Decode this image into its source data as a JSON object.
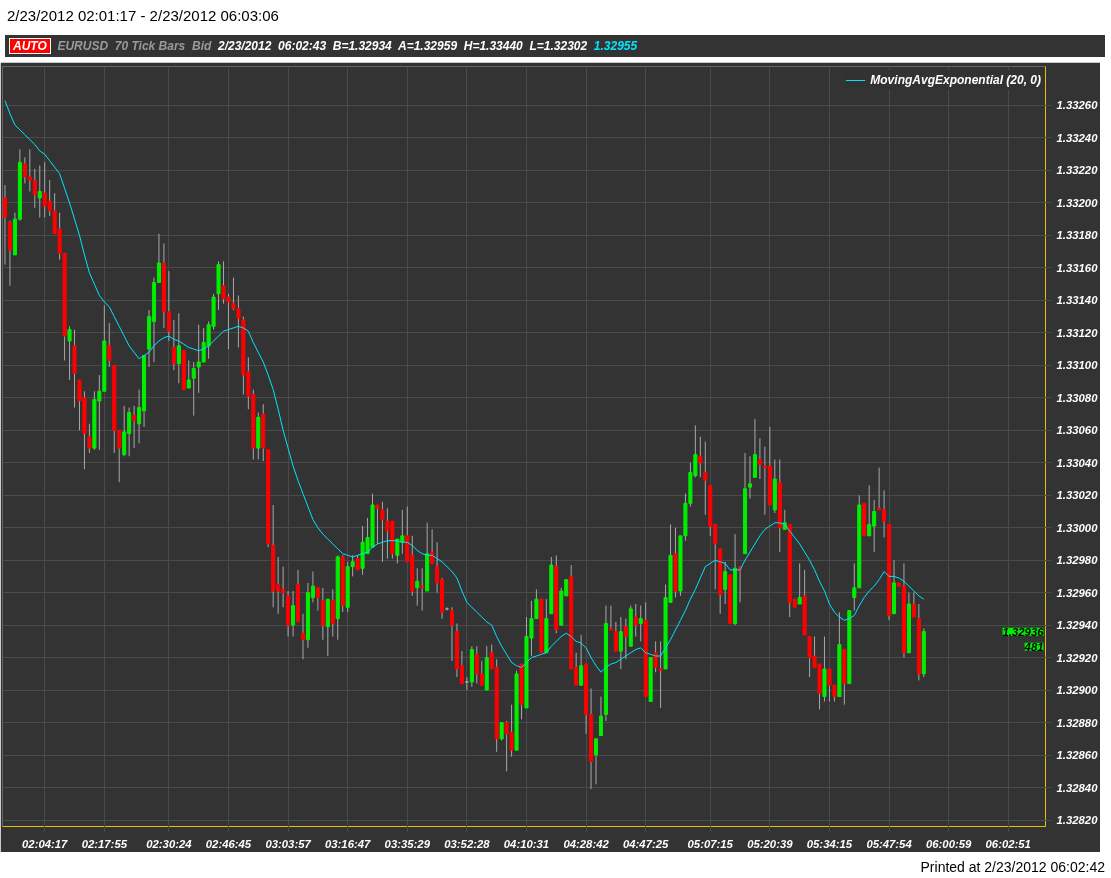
{
  "chart_data": {
    "type": "candlestick",
    "title": "2/23/2012 02:01:17 - 2/23/2012 06:03:06",
    "annotations": [
      "AUTO",
      "EURUSD",
      "70 Tick Bars",
      "Bid",
      "2/23/2012  06:02:43  B=1.32934  A=1.32959  H=1.33440  L=1.32302",
      "1.32955",
      "1.32936",
      "481",
      "Printed at 2/23/2012 06:02:42"
    ],
    "categories": [
      null,
      null,
      null,
      null,
      null,
      null,
      null,
      null,
      "02:04:17",
      null,
      null,
      null,
      null,
      null,
      null,
      null,
      null,
      null,
      null,
      null,
      "02:17:55",
      null,
      null,
      null,
      null,
      null,
      null,
      null,
      null,
      null,
      null,
      null,
      null,
      "02:30:24",
      null,
      null,
      null,
      null,
      null,
      null,
      null,
      null,
      null,
      null,
      null,
      "02:46:45",
      null,
      null,
      null,
      null,
      null,
      null,
      null,
      null,
      null,
      null,
      null,
      "03:03:57",
      null,
      null,
      null,
      null,
      null,
      null,
      null,
      null,
      null,
      null,
      null,
      "03:16:47",
      null,
      null,
      null,
      null,
      null,
      null,
      null,
      null,
      null,
      null,
      null,
      "03:35:29",
      null,
      null,
      null,
      null,
      null,
      null,
      null,
      null,
      null,
      null,
      null,
      "03:52:28",
      null,
      null,
      null,
      null,
      null,
      null,
      null,
      null,
      null,
      null,
      null,
      "04:10:31",
      null,
      null,
      null,
      null,
      null,
      null,
      null,
      null,
      null,
      null,
      null,
      "04:28:42",
      null,
      null,
      null,
      null,
      null,
      null,
      null,
      null,
      null,
      null,
      null,
      "04:47:25",
      null,
      null,
      null,
      null,
      null,
      null,
      null,
      null,
      null,
      null,
      null,
      null,
      "05:07:15",
      null,
      null,
      null,
      null,
      null,
      null,
      null,
      null,
      null,
      null,
      null,
      "05:20:39",
      null,
      null,
      null,
      null,
      null,
      null,
      null,
      null,
      null,
      null,
      null,
      "05:34:15",
      null,
      null,
      null,
      null,
      null,
      null,
      null,
      null,
      null,
      null,
      null,
      "05:47:54",
      null,
      null,
      null,
      null,
      null,
      null,
      null,
      null,
      null,
      null,
      null,
      "06:00:59",
      null,
      null,
      null,
      null,
      null,
      null,
      null,
      null,
      null,
      null,
      null,
      "06:02:51",
      null,
      null,
      null,
      null,
      null,
      null,
      null
    ],
    "ylim": [
      1.32816,
      1.33284
    ],
    "yticks": [
      {
        "value": 1.3282,
        "label": "1.32820"
      },
      {
        "value": 1.3284,
        "label": "1.32840"
      },
      {
        "value": 1.3286,
        "label": "1.32860"
      },
      {
        "value": 1.3288,
        "label": "1.32880"
      },
      {
        "value": 1.329,
        "label": "1.32900"
      },
      {
        "value": 1.3292,
        "label": "1.32920"
      },
      {
        "value": 1.3294,
        "label": "1.32940"
      },
      {
        "value": 1.3296,
        "label": "1.32960"
      },
      {
        "value": 1.3298,
        "label": "1.32980"
      },
      {
        "value": 1.33,
        "label": "1.33000"
      },
      {
        "value": 1.3302,
        "label": "1.33020"
      },
      {
        "value": 1.3304,
        "label": "1.33040"
      },
      {
        "value": 1.3306,
        "label": "1.33060"
      },
      {
        "value": 1.3308,
        "label": "1.33080"
      },
      {
        "value": 1.331,
        "label": "1.33100"
      },
      {
        "value": 1.3312,
        "label": "1.33120"
      },
      {
        "value": 1.3314,
        "label": "1.33140"
      },
      {
        "value": 1.3316,
        "label": "1.33160"
      },
      {
        "value": 1.3318,
        "label": "1.33180"
      },
      {
        "value": 1.332,
        "label": "1.33200"
      },
      {
        "value": 1.3322,
        "label": "1.33220"
      },
      {
        "value": 1.3324,
        "label": "1.33240"
      },
      {
        "value": 1.3326,
        "label": "1.33260"
      }
    ],
    "grid": true,
    "legend": "top right",
    "ohlc": [
      [
        1.33203,
        1.33211,
        1.33162,
        1.33191
      ],
      [
        1.33188,
        1.33189,
        1.33149,
        1.33171
      ],
      [
        1.33168,
        1.33194,
        1.33168,
        1.3319
      ],
      [
        1.3319,
        1.33233,
        1.33189,
        1.33225
      ],
      [
        1.33224,
        1.33228,
        1.33212,
        1.33216
      ],
      [
        1.33216,
        1.33233,
        1.33207,
        1.33214
      ],
      [
        1.33214,
        1.33221,
        1.33197,
        1.33205
      ],
      [
        1.33203,
        1.33223,
        1.33191,
        1.33207
      ],
      [
        1.33206,
        1.33225,
        1.33191,
        1.33198
      ],
      [
        1.33201,
        1.33214,
        1.33192,
        1.33195
      ],
      [
        1.33195,
        1.33206,
        1.33181,
        1.33181
      ],
      [
        1.33184,
        1.33194,
        1.33165,
        1.33169
      ],
      [
        1.33169,
        1.33169,
        1.33103,
        1.33118
      ],
      [
        1.33115,
        1.33124,
        1.33091,
        1.33122
      ],
      [
        1.33112,
        1.33122,
        1.33074,
        1.33095
      ],
      [
        1.33091,
        1.33091,
        1.3306,
        1.33078
      ],
      [
        1.3308,
        1.33084,
        1.33036,
        1.33058
      ],
      [
        1.33056,
        1.33064,
        1.33046,
        1.33049
      ],
      [
        1.33049,
        1.33084,
        1.33048,
        1.33079
      ],
      [
        1.33078,
        1.33094,
        1.33048,
        1.33084
      ],
      [
        1.33084,
        1.33137,
        1.33084,
        1.33115
      ],
      [
        1.33112,
        1.33126,
        1.33099,
        1.33103
      ],
      [
        1.331,
        1.331,
        1.33046,
        1.3306
      ],
      [
        1.3306,
        1.3306,
        1.33028,
        1.33049
      ],
      [
        1.33045,
        1.33075,
        1.33044,
        1.33059
      ],
      [
        1.33058,
        1.33074,
        1.33044,
        1.33071
      ],
      [
        1.33069,
        1.33075,
        1.33049,
        1.33066
      ],
      [
        1.33064,
        1.33085,
        1.33052,
        1.33074
      ],
      [
        1.33072,
        1.33106,
        1.33062,
        1.33106
      ],
      [
        1.3311,
        1.33134,
        1.33099,
        1.3313
      ],
      [
        1.33127,
        1.33154,
        1.33102,
        1.33151
      ],
      [
        1.33151,
        1.33181,
        1.33151,
        1.33163
      ],
      [
        1.33163,
        1.33175,
        1.33123,
        1.33133
      ],
      [
        1.33133,
        1.33158,
        1.33115,
        1.33121
      ],
      [
        1.33111,
        1.33128,
        1.33097,
        1.33101
      ],
      [
        1.33101,
        1.33132,
        1.33089,
        1.33112
      ],
      [
        1.33109,
        1.33109,
        1.33085,
        1.33085
      ],
      [
        1.33086,
        1.33103,
        1.33086,
        1.33091
      ],
      [
        1.33092,
        1.33102,
        1.33069,
        1.33098
      ],
      [
        1.33099,
        1.33125,
        1.33083,
        1.33102
      ],
      [
        1.33102,
        1.33123,
        1.33102,
        1.33114
      ],
      [
        1.33112,
        1.33127,
        1.33104,
        1.33125
      ],
      [
        1.33124,
        1.33144,
        1.33122,
        1.33142
      ],
      [
        1.33144,
        1.33164,
        1.33134,
        1.33162
      ],
      [
        1.33149,
        1.33164,
        1.33138,
        1.33141
      ],
      [
        1.33142,
        1.33144,
        1.3311,
        1.33139
      ],
      [
        1.33138,
        1.33154,
        1.33134,
        1.33135
      ],
      [
        1.33135,
        1.33143,
        1.33111,
        1.33129
      ],
      [
        1.33128,
        1.3313,
        1.33082,
        1.33094
      ],
      [
        1.33096,
        1.33105,
        1.33073,
        1.33081
      ],
      [
        1.33082,
        1.33085,
        1.33042,
        1.33049
      ],
      [
        1.33049,
        1.33071,
        1.33042,
        1.33068
      ],
      [
        1.3307,
        1.33076,
        1.33041,
        1.33049
      ],
      [
        1.33048,
        1.33048,
        1.32988,
        1.3299
      ],
      [
        1.32989,
        1.33014,
        1.32951,
        1.32961
      ],
      [
        1.32965,
        1.32982,
        1.32947,
        1.32961
      ],
      [
        1.32962,
        1.32976,
        1.32951,
        1.3296
      ],
      [
        1.32958,
        1.32961,
        1.32933,
        1.3294
      ],
      [
        1.3294,
        1.32961,
        1.32933,
        1.32952
      ],
      [
        1.32965,
        1.32974,
        1.32942,
        1.32942
      ],
      [
        1.32935,
        1.32947,
        1.32919,
        1.32931
      ],
      [
        1.32931,
        1.32966,
        1.32926,
        1.3296
      ],
      [
        1.32957,
        1.32973,
        1.32954,
        1.32964
      ],
      [
        1.32963,
        1.32963,
        1.32949,
        1.32957
      ],
      [
        1.32955,
        1.32963,
        1.32931,
        1.3294
      ],
      [
        1.32939,
        1.32956,
        1.32921,
        1.32956
      ],
      [
        1.32955,
        1.32962,
        1.32933,
        1.32941
      ],
      [
        1.32944,
        1.32983,
        1.32931,
        1.32982
      ],
      [
        1.32982,
        1.32983,
        1.32948,
        1.32952
      ],
      [
        1.32951,
        1.32979,
        1.32948,
        1.32976
      ],
      [
        1.32976,
        1.32983,
        1.3297,
        1.32979
      ],
      [
        1.32981,
        1.32983,
        1.32974,
        1.32974
      ],
      [
        1.32975,
        1.33001,
        1.32971,
        1.32991
      ],
      [
        1.32984,
        1.33006,
        1.32984,
        1.32994
      ],
      [
        1.32988,
        1.33021,
        1.32988,
        1.33014
      ],
      [
        1.33014,
        1.33014,
        1.3299,
        1.33012
      ],
      [
        1.33011,
        1.33016,
        1.32979,
        1.33005
      ],
      [
        1.33004,
        1.33012,
        1.32981,
        1.32998
      ],
      [
        1.33004,
        1.33004,
        1.32981,
        1.32984
      ],
      [
        1.32983,
        1.32993,
        1.32978,
        1.32993
      ],
      [
        1.32991,
        1.33011,
        1.32984,
        1.32995
      ],
      [
        1.32995,
        1.33013,
        1.32979,
        1.32979
      ],
      [
        1.32983,
        1.32995,
        1.32958,
        1.32961
      ],
      [
        1.32963,
        1.32975,
        1.32952,
        1.32967
      ],
      [
        1.32964,
        1.32975,
        1.32949,
        1.32963
      ],
      [
        1.32961,
        1.33003,
        1.32961,
        1.32984
      ],
      [
        1.32985,
        1.32999,
        1.32978,
        1.32978
      ],
      [
        1.32976,
        1.32991,
        1.3296,
        1.32966
      ],
      [
        1.32968,
        1.32969,
        1.32944,
        1.32948
      ],
      [
        1.3295,
        1.32951,
        1.32949,
        1.3295
      ],
      [
        1.32949,
        1.32951,
        1.32918,
        1.3294
      ],
      [
        1.32936,
        1.32941,
        1.32908,
        1.32913
      ],
      [
        1.32915,
        1.32924,
        1.32904,
        1.32904
      ],
      [
        1.32905,
        1.32908,
        1.329,
        1.32905
      ],
      [
        1.32905,
        1.32927,
        1.32902,
        1.32925
      ],
      [
        1.32922,
        1.32927,
        1.32904,
        1.3291
      ],
      [
        1.3291,
        1.32918,
        1.32903,
        1.32903
      ],
      [
        1.329,
        1.32927,
        1.329,
        1.3292
      ],
      [
        1.32923,
        1.32928,
        1.32913,
        1.32913
      ],
      [
        1.32914,
        1.32919,
        1.32862,
        1.3287
      ],
      [
        1.3287,
        1.3288,
        1.32869,
        1.3288
      ],
      [
        1.3288,
        1.32881,
        1.3285,
        1.32873
      ],
      [
        1.32874,
        1.32891,
        1.32859,
        1.32863
      ],
      [
        1.32863,
        1.32912,
        1.32863,
        1.3291
      ],
      [
        1.32916,
        1.32916,
        1.32882,
        1.32891
      ],
      [
        1.32889,
        1.32945,
        1.32889,
        1.32933
      ],
      [
        1.32932,
        1.32955,
        1.32921,
        1.32944
      ],
      [
        1.32944,
        1.32962,
        1.32944,
        1.32956
      ],
      [
        1.32956,
        1.32956,
        1.32923,
        1.32923
      ],
      [
        1.32923,
        1.32956,
        1.32923,
        1.32944
      ],
      [
        1.32947,
        1.32982,
        1.32947,
        1.32977
      ],
      [
        1.32976,
        1.32983,
        1.32935,
        1.32937
      ],
      [
        1.3294,
        1.32963,
        1.3294,
        1.32961
      ],
      [
        1.32958,
        1.32968,
        1.32958,
        1.32968
      ],
      [
        1.3297,
        1.32977,
        1.32913,
        1.32913
      ],
      [
        1.32914,
        1.32923,
        1.32903,
        1.32903
      ],
      [
        1.32903,
        1.32934,
        1.32903,
        1.32915
      ],
      [
        1.32916,
        1.32916,
        1.32873,
        1.32885
      ],
      [
        1.32885,
        1.32901,
        1.32839,
        1.32856
      ],
      [
        1.3286,
        1.3287,
        1.32842,
        1.3287
      ],
      [
        1.32872,
        1.32896,
        1.32872,
        1.32884
      ],
      [
        1.32885,
        1.32952,
        1.32881,
        1.32941
      ],
      [
        1.32938,
        1.32952,
        1.32937,
        1.32937
      ],
      [
        1.32936,
        1.32942,
        1.32924,
        1.32924
      ],
      [
        1.32924,
        1.32945,
        1.32913,
        1.32936
      ],
      [
        1.32939,
        1.32944,
        1.32919,
        1.32933
      ],
      [
        1.32927,
        1.32952,
        1.32927,
        1.3295
      ],
      [
        1.32945,
        1.32953,
        1.32933,
        1.3294
      ],
      [
        1.32941,
        1.32952,
        1.3293,
        1.32944
      ],
      [
        1.32943,
        1.32954,
        1.32896,
        1.32896
      ],
      [
        1.32893,
        1.3292,
        1.32893,
        1.3292
      ],
      [
        1.32923,
        1.3293,
        1.32911,
        1.32914
      ],
      [
        1.32913,
        1.3293,
        1.32889,
        1.32912
      ],
      [
        1.32913,
        1.32965,
        1.32913,
        1.32957
      ],
      [
        1.32954,
        1.33002,
        1.32954,
        1.32983
      ],
      [
        1.32984,
        1.33,
        1.32957,
        1.32961
      ],
      [
        1.32961,
        1.32995,
        1.32958,
        1.32995
      ],
      [
        1.32995,
        1.33021,
        1.32992,
        1.33015
      ],
      [
        1.33015,
        1.3304,
        1.33013,
        1.33034
      ],
      [
        1.33032,
        1.33063,
        1.33031,
        1.33045
      ],
      [
        1.33044,
        1.33056,
        1.33031,
        1.3304
      ],
      [
        1.33034,
        1.33053,
        1.33008,
        1.33029
      ],
      [
        1.33026,
        1.33026,
        1.32995,
        1.33001
      ],
      [
        1.33002,
        1.33002,
        1.32962,
        1.3299
      ],
      [
        1.32987,
        1.32987,
        1.32947,
        1.32959
      ],
      [
        1.32962,
        1.32979,
        1.32953,
        1.32973
      ],
      [
        1.32971,
        1.32971,
        1.32941,
        1.32941
      ],
      [
        1.32941,
        1.32996,
        1.3294,
        1.32975
      ],
      [
        1.32976,
        1.32976,
        1.32954,
        1.32974
      ],
      [
        1.32984,
        1.33046,
        1.32984,
        1.33024
      ],
      [
        1.33025,
        1.33044,
        1.33018,
        1.33027
      ],
      [
        1.33031,
        1.33067,
        1.33031,
        1.33045
      ],
      [
        1.33042,
        1.33055,
        1.3303,
        1.33039
      ],
      [
        1.33038,
        1.3305,
        1.33008,
        1.33037
      ],
      [
        1.33038,
        1.33062,
        1.33014,
        1.33014
      ],
      [
        1.33011,
        1.33042,
        1.33009,
        1.3303
      ],
      [
        1.33028,
        1.33042,
        1.32985,
        1.33
      ],
      [
        1.32999,
        1.33011,
        1.32999,
        1.33003
      ],
      [
        1.33002,
        1.33002,
        1.32945,
        1.32954
      ],
      [
        1.32956,
        1.32956,
        1.32951,
        1.32951
      ],
      [
        1.32953,
        1.32978,
        1.32953,
        1.32957
      ],
      [
        1.32958,
        1.32974,
        1.32934,
        1.32934
      ],
      [
        1.32933,
        1.32933,
        1.32908,
        1.3292
      ],
      [
        1.32921,
        1.32933,
        1.32914,
        1.32914
      ],
      [
        1.32916,
        1.32916,
        1.32888,
        1.32898
      ],
      [
        1.32896,
        1.32933,
        1.32893,
        1.32913
      ],
      [
        1.32913,
        1.32913,
        1.32893,
        1.32903
      ],
      [
        1.32903,
        1.32903,
        1.32893,
        1.32896
      ],
      [
        1.32896,
        1.32948,
        1.32896,
        1.32928
      ],
      [
        1.32925,
        1.32925,
        1.32891,
        1.32904
      ],
      [
        1.32904,
        1.32949,
        1.32904,
        1.32949
      ],
      [
        1.32957,
        1.32978,
        1.32949,
        1.32963
      ],
      [
        1.32963,
        1.3302,
        1.32963,
        1.33014
      ],
      [
        1.33015,
        1.33015,
        1.32995,
        1.32995
      ],
      [
        1.32995,
        1.33026,
        1.32995,
        1.33002
      ],
      [
        1.33001,
        1.33017,
        1.32985,
        1.3301
      ],
      [
        1.33012,
        1.33037,
        1.33011,
        1.33011
      ],
      [
        1.33011,
        1.33023,
        1.32994,
        1.33004
      ],
      [
        1.33002,
        1.33002,
        1.32943,
        1.32946
      ],
      [
        1.32947,
        1.3298,
        1.32947,
        1.32966
      ],
      [
        1.32966,
        1.32966,
        1.32964,
        1.32964
      ],
      [
        1.32964,
        1.32978,
        1.3292,
        1.32923
      ],
      [
        1.32923,
        1.3296,
        1.32923,
        1.32953
      ],
      [
        1.32953,
        1.3296,
        1.32945,
        1.32945
      ],
      [
        1.32944,
        1.32953,
        1.32906,
        1.3291
      ],
      [
        1.3291,
        1.32938,
        1.32908,
        1.32936
      ],
      null,
      null,
      null,
      null,
      null,
      null,
      null,
      null,
      null,
      null,
      null,
      null,
      null,
      null,
      null,
      null,
      null,
      null,
      null,
      null,
      null,
      null,
      null,
      null
    ],
    "series": [
      {
        "type": "line",
        "name": "MovingAvgExponential (20, 0)",
        "color": "#00e5ff",
        "values": [
          1.33263,
          1.33255,
          1.33248,
          1.33245,
          1.33242,
          1.33239,
          1.33236,
          1.33232,
          1.3323,
          1.33226,
          1.33222,
          1.33218,
          1.33209,
          1.332,
          1.3319,
          1.3318,
          1.33168,
          1.33157,
          1.3315,
          1.33143,
          1.33139,
          1.33136,
          1.3313,
          1.33124,
          1.33118,
          1.33112,
          1.33108,
          1.33104,
          1.33106,
          1.33108,
          1.33112,
          1.33115,
          1.33117,
          1.33118,
          1.33116,
          1.33115,
          1.33113,
          1.33111,
          1.3311,
          1.33109,
          1.3311,
          1.33112,
          1.33115,
          1.33118,
          1.33121,
          1.33122,
          1.33123,
          1.33124,
          1.33123,
          1.33121,
          1.33114,
          1.33108,
          1.33102,
          1.33094,
          1.33085,
          1.33073,
          1.3306,
          1.33049,
          1.33038,
          1.33029,
          1.33021,
          1.33013,
          1.33005,
          1.33,
          1.32996,
          1.32993,
          1.3299,
          1.32987,
          1.32984,
          1.32983,
          1.32982,
          1.32983,
          1.32984,
          1.32985,
          1.32988,
          1.3299,
          1.32991,
          1.32992,
          1.32992,
          1.32992,
          1.32991,
          1.32991,
          1.32989,
          1.32986,
          1.32984,
          1.32983,
          1.32983,
          1.32981,
          1.32979,
          1.32976,
          1.32973,
          1.32969,
          1.32961,
          1.32954,
          1.32951,
          1.32948,
          1.32945,
          1.32942,
          1.3294,
          1.32933,
          1.32927,
          1.32922,
          1.32917,
          1.32915,
          1.32914,
          1.32917,
          1.3292,
          1.32921,
          1.32922,
          1.32923,
          1.32927,
          1.3293,
          1.32933,
          1.32935,
          1.32933,
          1.3293,
          1.32929,
          1.32926,
          1.3292,
          1.32915,
          1.32911,
          1.32914,
          1.32916,
          1.32917,
          1.32919,
          1.32921,
          1.32923,
          1.32925,
          1.32926,
          1.32923,
          1.32922,
          1.32921,
          1.32921,
          1.32926,
          1.32931,
          1.32937,
          1.32943,
          1.32949,
          1.32956,
          1.32962,
          1.32969,
          1.32976,
          1.32978,
          1.3298,
          1.32979,
          1.32978,
          1.32974,
          1.32974,
          1.32974,
          1.3298,
          1.32985,
          1.3299,
          1.32995,
          1.32999,
          1.33001,
          1.33003,
          1.33003,
          1.33002,
          1.32998,
          1.32994,
          1.3299,
          1.32985,
          1.3298,
          1.32974,
          1.32967,
          1.32961,
          1.32953,
          1.32948,
          1.32945,
          1.32943,
          1.32944,
          1.32946,
          1.32952,
          1.32957,
          1.32961,
          1.32964,
          1.32968,
          1.32973,
          1.3297,
          1.3297,
          1.32969,
          1.32967,
          1.32964,
          1.32961,
          1.32958,
          1.32956,
          null,
          null,
          null,
          null,
          null,
          null,
          null,
          null,
          null,
          null,
          null,
          null,
          null,
          null,
          null,
          null,
          null,
          null,
          null,
          null,
          null,
          null,
          null,
          null
        ]
      }
    ]
  }
}
